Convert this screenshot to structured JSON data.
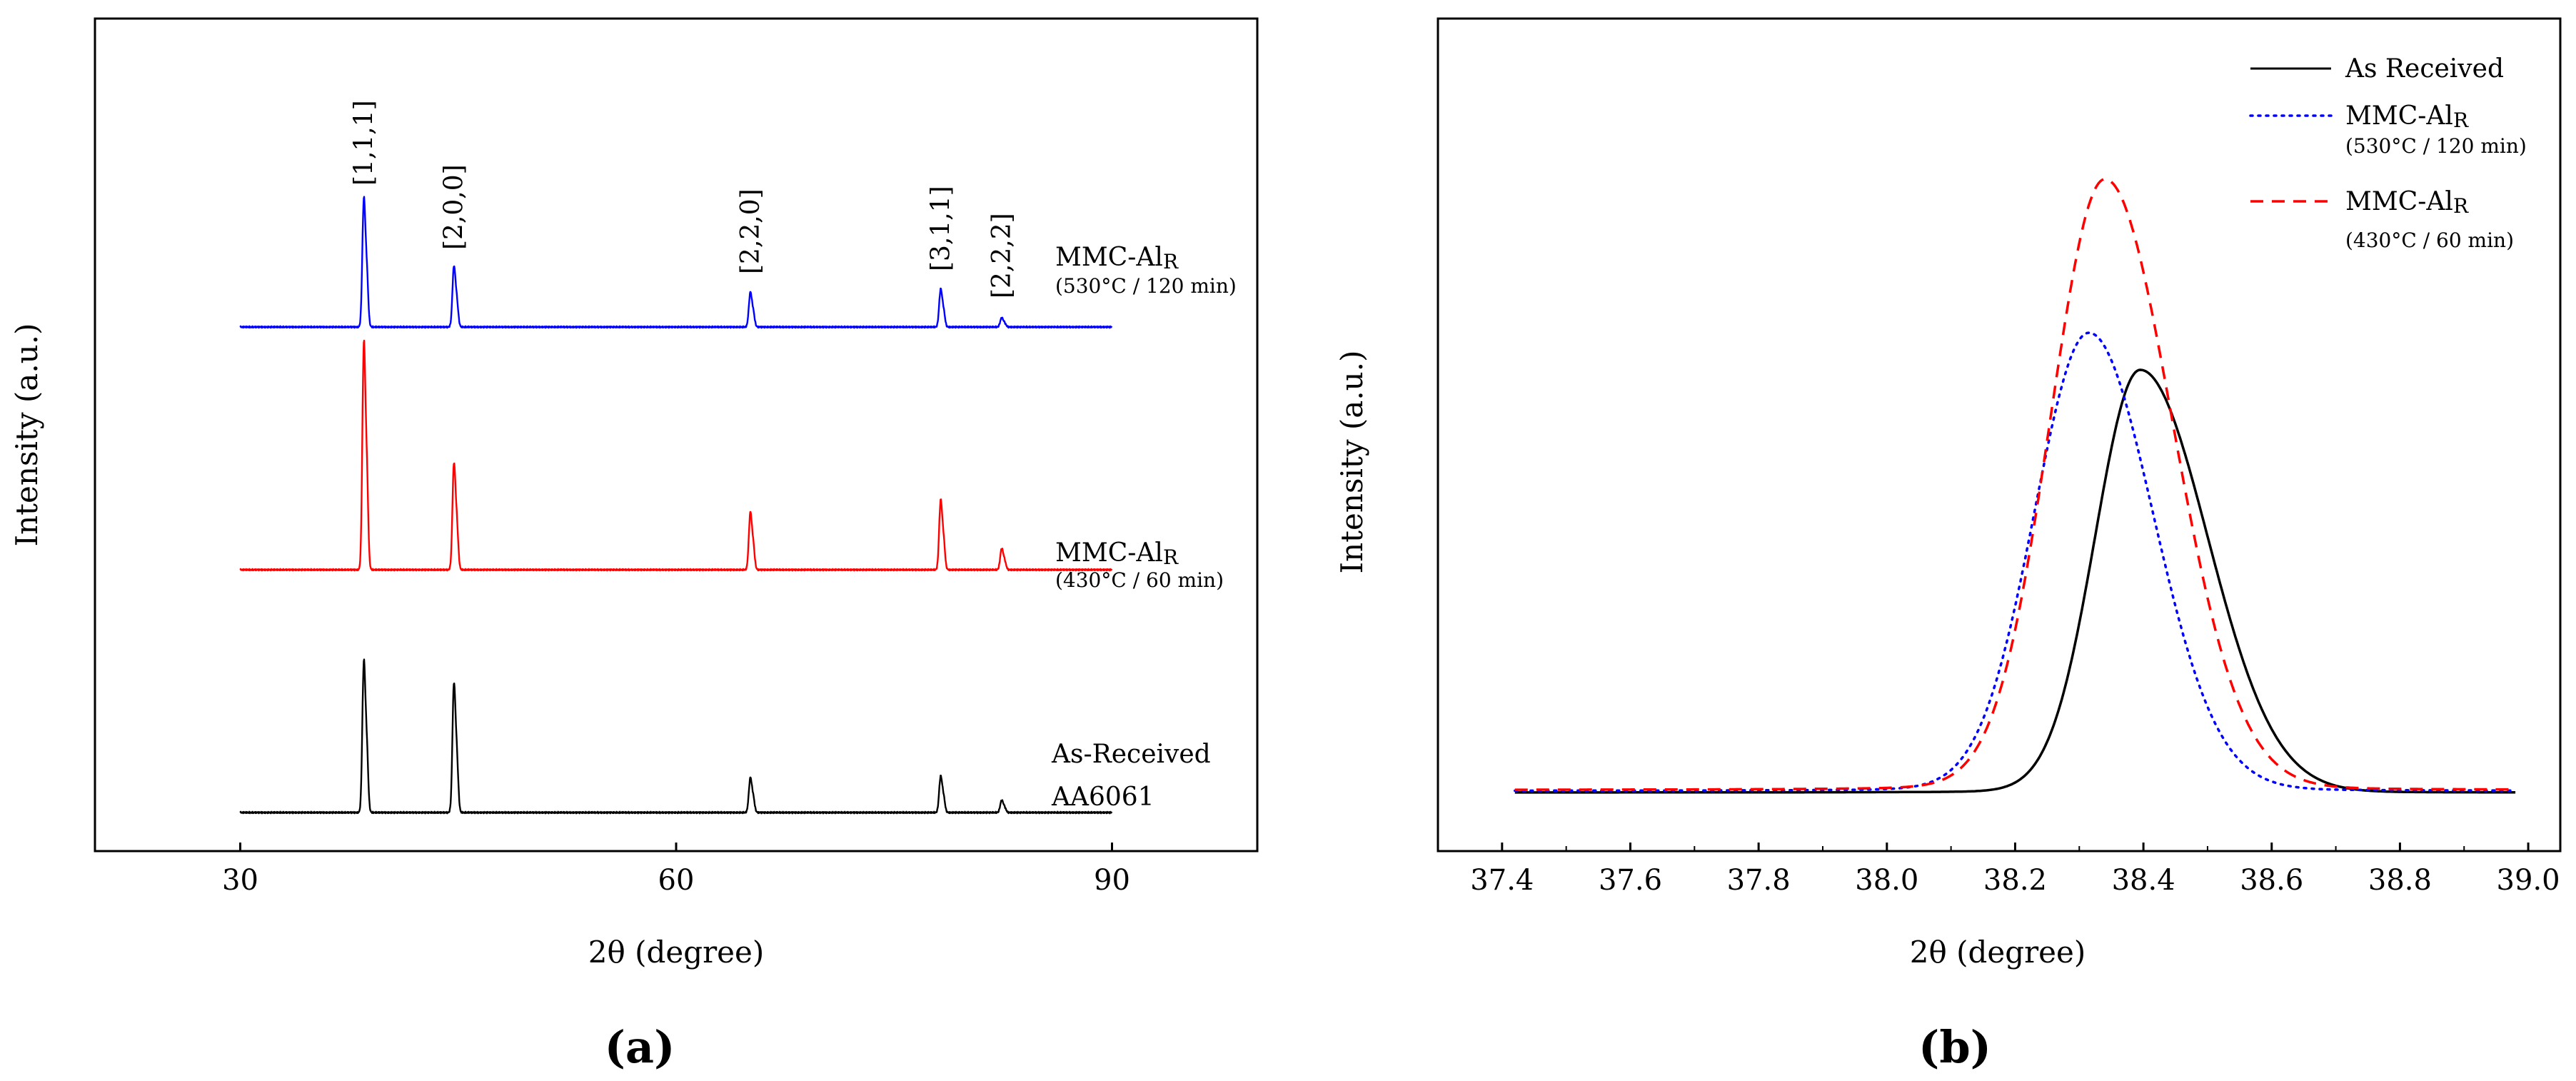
{
  "panels": {
    "a": {
      "label_open": "(",
      "letter": "a",
      "label_close": ")"
    },
    "b": {
      "label_open": "(",
      "letter": "b",
      "label_close": ")"
    }
  },
  "chart_data": [
    {
      "type": "line",
      "panel": "a",
      "xlabel": "2θ (degree)",
      "ylabel": "Intensity (a.u.)",
      "xlim": [
        20,
        100
      ],
      "xticks": [
        30,
        60,
        90
      ],
      "xtick_labels": [
        "30",
        "60",
        "90"
      ],
      "yticks": [],
      "grid": false,
      "x_range": [
        30,
        90
      ],
      "series": [
        {
          "name": "As-Received AA6061",
          "label_lines": [
            "As-Received",
            "AA6061"
          ],
          "color": "#000000",
          "offset": 0,
          "peaks": [
            {
              "x": 38.5,
              "height": 100
            },
            {
              "x": 44.7,
              "height": 85
            },
            {
              "x": 65.1,
              "height": 23
            },
            {
              "x": 78.2,
              "height": 24
            },
            {
              "x": 82.4,
              "height": 8
            }
          ]
        },
        {
          "name": "MMC-AlR (430°C / 60 min)",
          "label_main": "MMC-Al",
          "label_sub": "R",
          "label_cond": "(430°C / 60 min)",
          "color": "#ff0000",
          "offset": 170,
          "peaks": [
            {
              "x": 38.5,
              "height": 150
            },
            {
              "x": 44.7,
              "height": 70
            },
            {
              "x": 65.1,
              "height": 38
            },
            {
              "x": 78.2,
              "height": 46
            },
            {
              "x": 82.4,
              "height": 14
            }
          ]
        },
        {
          "name": "MMC-AlR (530°C / 120 min)",
          "label_main": "MMC-Al",
          "label_sub": "R",
          "label_cond": "(530°C / 120 min)",
          "color": "#0000ff",
          "offset": 340,
          "peaks": [
            {
              "x": 38.5,
              "height": 85
            },
            {
              "x": 44.7,
              "height": 40
            },
            {
              "x": 65.1,
              "height": 23
            },
            {
              "x": 78.2,
              "height": 25
            },
            {
              "x": 82.4,
              "height": 6
            }
          ]
        }
      ],
      "annotations": [
        {
          "text": "[1,1,1]",
          "x": 38.5
        },
        {
          "text": "[2,0,0]",
          "x": 44.7
        },
        {
          "text": "[2,2,0]",
          "x": 65.1
        },
        {
          "text": "[3,1,1]",
          "x": 78.2
        },
        {
          "text": "[2,2,2]",
          "x": 82.4
        }
      ]
    },
    {
      "type": "line",
      "panel": "b",
      "xlabel": "2θ (degree)",
      "ylabel": "Intensity (a.u.)",
      "xlim": [
        37.3,
        39.05
      ],
      "xticks": [
        37.4,
        37.6,
        37.8,
        38.0,
        38.2,
        38.4,
        38.6,
        38.8,
        39.0
      ],
      "xtick_labels": [
        "37.4",
        "37.6",
        "37.8",
        "38.0",
        "38.2",
        "38.4",
        "38.6",
        "38.8",
        "39.0"
      ],
      "yticks": [],
      "grid": false,
      "legend_position": "top-right",
      "series": [
        {
          "name": "As Received",
          "legend_main": "As Received",
          "color": "#000000",
          "dash": "solid",
          "baseline": 0,
          "peak": {
            "x": 38.395,
            "height": 100,
            "width_left": 0.07,
            "width_right": 0.105,
            "tail": 0.012
          }
        },
        {
          "name": "MMC-AlR (530°C / 120 min)",
          "legend_main": "MMC-Al",
          "legend_sub": "R",
          "legend_cond": "(530°C / 120 min)",
          "color": "#0000ff",
          "dash": "dotted",
          "baseline": 0.4,
          "peak": {
            "x": 38.315,
            "height": 107,
            "width_left": 0.085,
            "width_right": 0.1,
            "tail": 0.025
          }
        },
        {
          "name": "MMC-AlR (430°C / 60 min)",
          "legend_main": "MMC-Al",
          "legend_sub": "R",
          "legend_cond": "(430°C / 60 min)",
          "color": "#ff0000",
          "dash": "dashed",
          "baseline": 0.6,
          "peak": {
            "x": 38.34,
            "height": 142,
            "width_left": 0.085,
            "width_right": 0.105,
            "tail": 0.03
          }
        }
      ]
    }
  ]
}
